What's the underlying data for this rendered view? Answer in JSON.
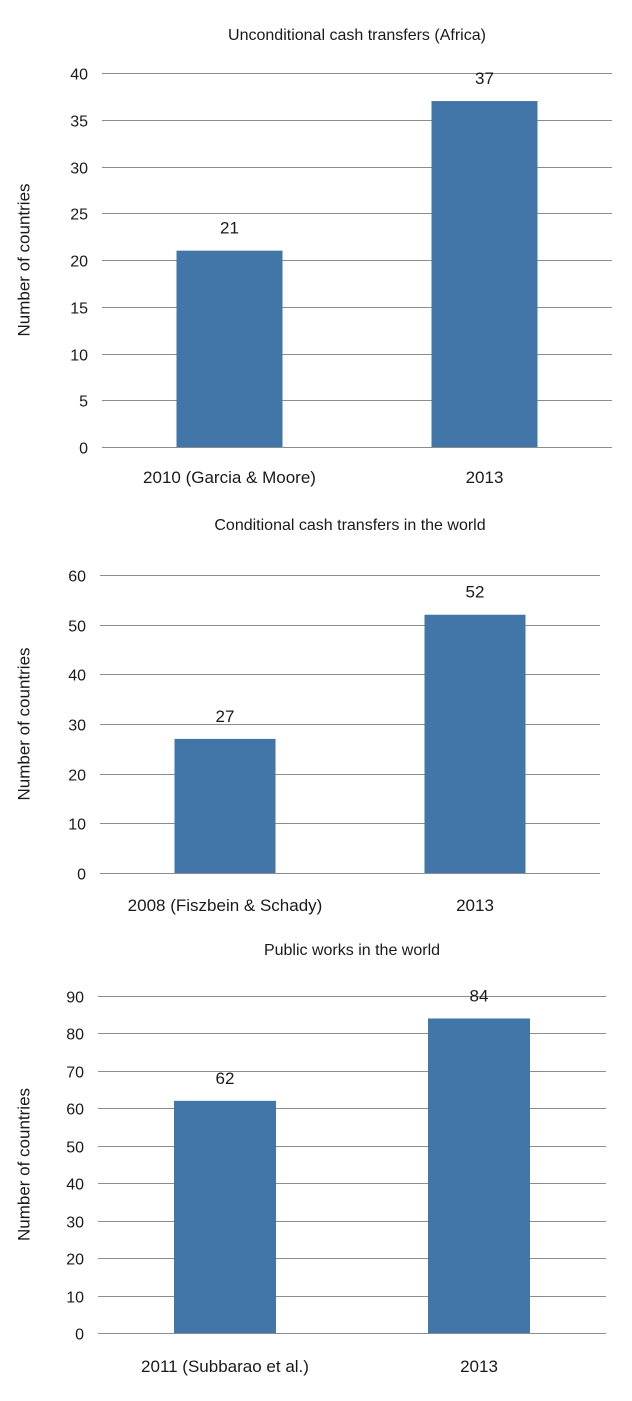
{
  "chart_data": [
    {
      "type": "bar",
      "title": "Unconditional cash transfers (Africa)",
      "ylabel": "Number of countries",
      "xlabel": "",
      "categories": [
        "2010 (Garcia & Moore)",
        "2013"
      ],
      "values": [
        21,
        37
      ],
      "data_labels": [
        "21",
        "37"
      ],
      "ylim": [
        0,
        40
      ],
      "yticks": [
        0,
        5,
        10,
        15,
        20,
        25,
        30,
        35,
        40
      ],
      "grid": true,
      "legend": "none",
      "bar_color": "#4275A8"
    },
    {
      "type": "bar",
      "title": "Conditional cash transfers in the world",
      "ylabel": "Number of countries",
      "xlabel": "",
      "categories": [
        "2008 (Fiszbein & Schady)",
        "2013"
      ],
      "values": [
        27,
        52
      ],
      "data_labels": [
        "27",
        "52"
      ],
      "ylim": [
        0,
        60
      ],
      "yticks": [
        0,
        10,
        20,
        30,
        40,
        50,
        60
      ],
      "grid": true,
      "legend": "none",
      "bar_color": "#4275A8"
    },
    {
      "type": "bar",
      "title": "Public works in the world",
      "ylabel": "Number of countries",
      "xlabel": "",
      "categories": [
        "2011 (Subbarao et al.)",
        "2013"
      ],
      "values": [
        62,
        84
      ],
      "data_labels": [
        "62",
        "84"
      ],
      "ylim": [
        0,
        90
      ],
      "yticks": [
        0,
        10,
        20,
        30,
        40,
        50,
        60,
        70,
        80,
        90
      ],
      "grid": true,
      "legend": "none",
      "bar_color": "#4275A8"
    }
  ]
}
